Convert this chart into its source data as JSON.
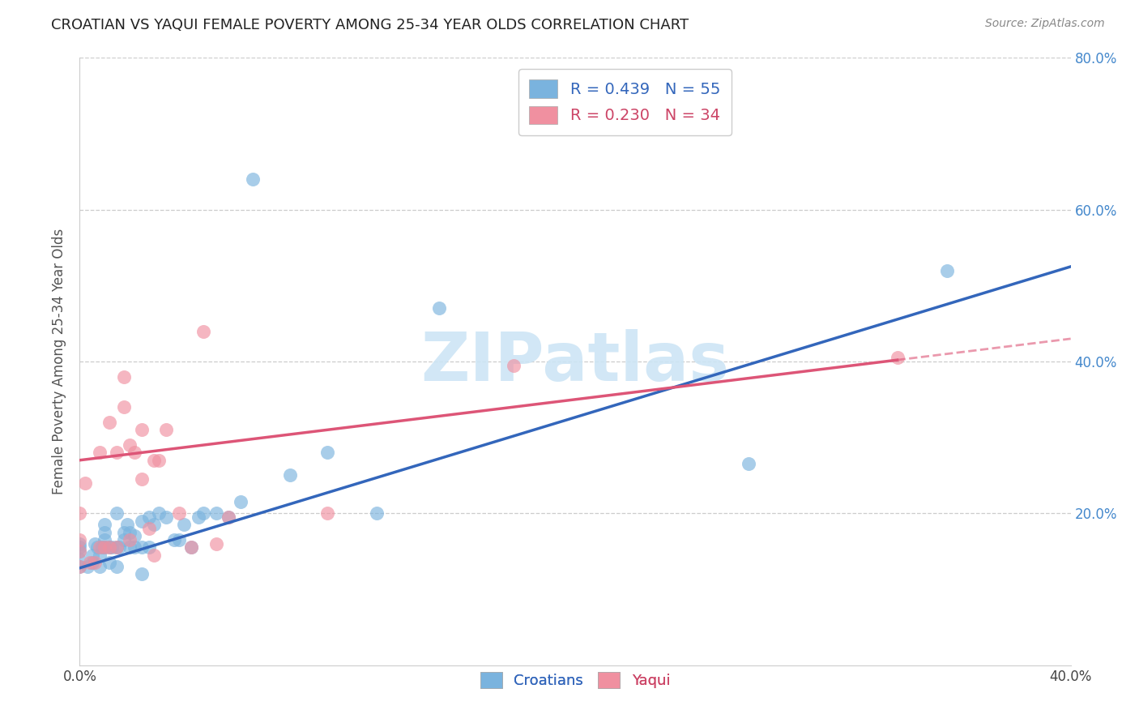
{
  "title": "CROATIAN VS YAQUI FEMALE POVERTY AMONG 25-34 YEAR OLDS CORRELATION CHART",
  "source": "Source: ZipAtlas.com",
  "ylabel": "Female Poverty Among 25-34 Year Olds",
  "xlim": [
    0.0,
    0.4
  ],
  "ylim": [
    0.0,
    0.8
  ],
  "croatian_R": 0.439,
  "croatian_N": 55,
  "yaqui_R": 0.23,
  "yaqui_N": 34,
  "croatian_color": "#7ab3de",
  "yaqui_color": "#f090a0",
  "line_croatian_color": "#3366bb",
  "line_yaqui_color": "#dd5577",
  "watermark_color": "#cde5f5",
  "croatian_line_y0": 0.128,
  "croatian_line_y1": 0.525,
  "yaqui_line_y0": 0.27,
  "yaqui_line_y1": 0.43,
  "yaqui_line_solid_end": 0.33,
  "croatian_x": [
    0.0,
    0.0,
    0.0,
    0.0,
    0.0,
    0.003,
    0.005,
    0.005,
    0.006,
    0.007,
    0.008,
    0.008,
    0.009,
    0.01,
    0.01,
    0.01,
    0.01,
    0.012,
    0.012,
    0.013,
    0.015,
    0.015,
    0.015,
    0.016,
    0.018,
    0.018,
    0.019,
    0.02,
    0.02,
    0.022,
    0.022,
    0.025,
    0.025,
    0.025,
    0.028,
    0.028,
    0.03,
    0.032,
    0.035,
    0.038,
    0.04,
    0.042,
    0.045,
    0.048,
    0.05,
    0.055,
    0.06,
    0.065,
    0.07,
    0.085,
    0.1,
    0.12,
    0.145,
    0.27,
    0.35
  ],
  "croatian_y": [
    0.13,
    0.14,
    0.15,
    0.155,
    0.16,
    0.13,
    0.135,
    0.145,
    0.16,
    0.155,
    0.13,
    0.145,
    0.155,
    0.155,
    0.165,
    0.175,
    0.185,
    0.135,
    0.155,
    0.155,
    0.13,
    0.155,
    0.2,
    0.155,
    0.165,
    0.175,
    0.185,
    0.155,
    0.175,
    0.155,
    0.17,
    0.12,
    0.155,
    0.19,
    0.155,
    0.195,
    0.185,
    0.2,
    0.195,
    0.165,
    0.165,
    0.185,
    0.155,
    0.195,
    0.2,
    0.2,
    0.195,
    0.215,
    0.64,
    0.25,
    0.28,
    0.2,
    0.47,
    0.265,
    0.52
  ],
  "yaqui_x": [
    0.0,
    0.0,
    0.0,
    0.0,
    0.002,
    0.004,
    0.006,
    0.008,
    0.008,
    0.01,
    0.012,
    0.012,
    0.015,
    0.015,
    0.018,
    0.018,
    0.02,
    0.02,
    0.022,
    0.025,
    0.025,
    0.028,
    0.03,
    0.03,
    0.032,
    0.035,
    0.04,
    0.045,
    0.05,
    0.055,
    0.06,
    0.1,
    0.175,
    0.33
  ],
  "yaqui_y": [
    0.13,
    0.15,
    0.165,
    0.2,
    0.24,
    0.135,
    0.135,
    0.155,
    0.28,
    0.155,
    0.155,
    0.32,
    0.155,
    0.28,
    0.34,
    0.38,
    0.165,
    0.29,
    0.28,
    0.245,
    0.31,
    0.18,
    0.145,
    0.27,
    0.27,
    0.31,
    0.2,
    0.155,
    0.44,
    0.16,
    0.195,
    0.2,
    0.395,
    0.405
  ]
}
